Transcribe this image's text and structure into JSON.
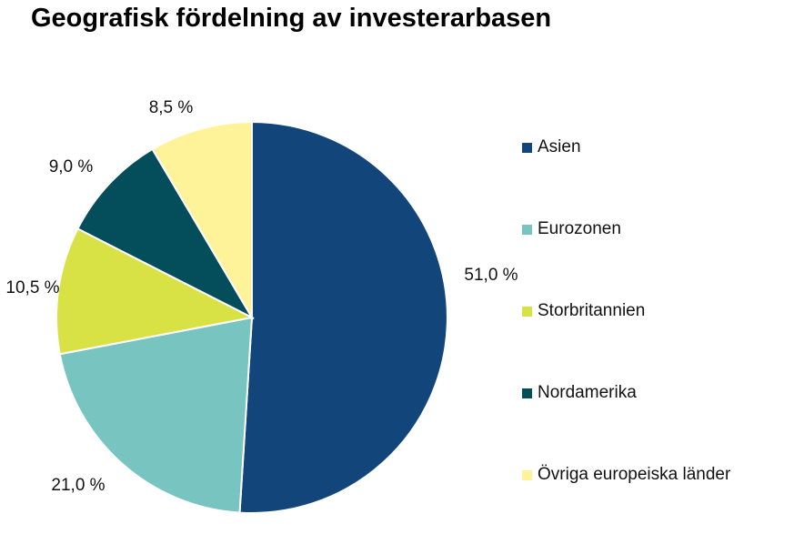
{
  "chart_data": {
    "type": "pie",
    "title": "Geografisk fördelning av investerarbasen",
    "categories": [
      "Asien",
      "Eurozonen",
      "Storbritannien",
      "Nordamerika",
      "Övriga europeiska länder"
    ],
    "values": [
      51.0,
      21.0,
      10.5,
      9.0,
      8.5
    ],
    "data_labels": [
      "51,0 %",
      "21,0 %",
      "10,5 %",
      "9,0 %",
      "8,5 %"
    ],
    "colors": [
      "#12467b",
      "#77c4c1",
      "#d8e245",
      "#034e5a",
      "#fff399"
    ],
    "start_angle": "12 o'clock",
    "direction": "clockwise",
    "legend_position": "right"
  }
}
